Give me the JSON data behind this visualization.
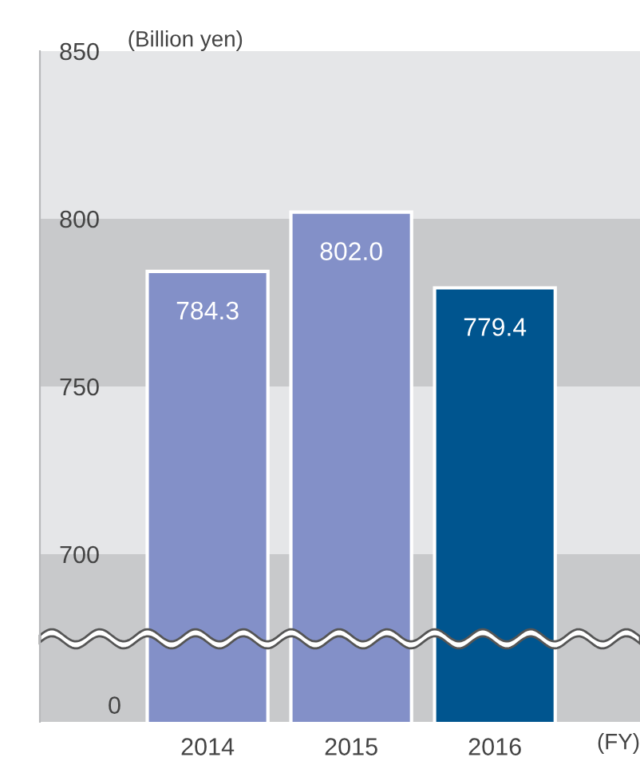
{
  "chart_data": {
    "type": "bar",
    "ylabel": "(Billion yen)",
    "xlabel": "(FY)",
    "categories": [
      "2014",
      "2015",
      "2016"
    ],
    "values": [
      784.3,
      802.0,
      779.4
    ],
    "colors": [
      "#8390c8",
      "#8390c8",
      "#00558f"
    ],
    "value_labels": [
      "784.3",
      "802.0",
      "779.4"
    ],
    "ylim": [
      650,
      850
    ],
    "yticks": [
      700,
      750,
      800,
      850
    ],
    "bands": [
      {
        "axis": "y",
        "from": 800,
        "to": 850,
        "color": "#e5e6e8"
      },
      {
        "axis": "y",
        "from": 750,
        "to": 800,
        "color": "#c8c9cb"
      },
      {
        "axis": "y",
        "from": 700,
        "to": 750,
        "color": "#e5e6e8"
      },
      {
        "axis": "y",
        "from": 650,
        "to": 700,
        "color": "#c8c9cb"
      }
    ],
    "annotations": [
      "0"
    ],
    "grid": false,
    "legend": false
  }
}
